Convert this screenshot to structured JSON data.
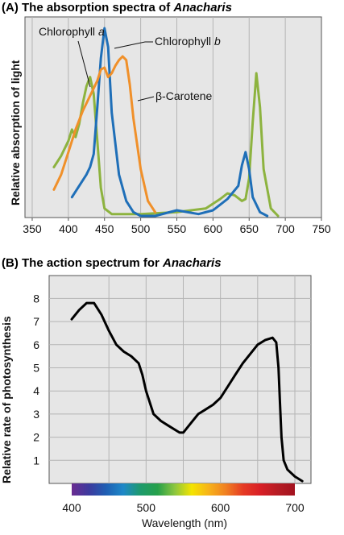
{
  "chart_data": [
    {
      "type": "line",
      "title_prefix": "(A)",
      "title": "The absorption spectra of",
      "title_species": "Anacharis",
      "xlabel": "",
      "ylabel": "Relative absorption of light",
      "xlim": [
        340,
        750
      ],
      "ylim": [
        0,
        1
      ],
      "x_ticks": [
        "350",
        "400",
        "450",
        "500",
        "550",
        "600",
        "650",
        "700",
        "750"
      ],
      "grid": true,
      "series": [
        {
          "name": "Chlorophyll",
          "name_suffix": "a",
          "color": "#8db33f",
          "points": [
            [
              380,
              0.26
            ],
            [
              390,
              0.32
            ],
            [
              400,
              0.4
            ],
            [
              405,
              0.46
            ],
            [
              410,
              0.42
            ],
            [
              415,
              0.49
            ],
            [
              420,
              0.6
            ],
            [
              425,
              0.69
            ],
            [
              430,
              0.74
            ],
            [
              435,
              0.65
            ],
            [
              440,
              0.4
            ],
            [
              445,
              0.15
            ],
            [
              450,
              0.04
            ],
            [
              460,
              0.01
            ],
            [
              500,
              0.01
            ],
            [
              550,
              0.02
            ],
            [
              590,
              0.04
            ],
            [
              610,
              0.09
            ],
            [
              620,
              0.12
            ],
            [
              630,
              0.11
            ],
            [
              640,
              0.08
            ],
            [
              645,
              0.09
            ],
            [
              650,
              0.2
            ],
            [
              655,
              0.5
            ],
            [
              660,
              0.76
            ],
            [
              665,
              0.58
            ],
            [
              670,
              0.25
            ],
            [
              680,
              0.04
            ],
            [
              690,
              0.0
            ]
          ]
        },
        {
          "name": "Chlorophyll",
          "name_suffix": "b",
          "color": "#1f6fb8",
          "points": [
            [
              405,
              0.1
            ],
            [
              415,
              0.16
            ],
            [
              425,
              0.22
            ],
            [
              430,
              0.26
            ],
            [
              435,
              0.33
            ],
            [
              440,
              0.58
            ],
            [
              445,
              0.84
            ],
            [
              450,
              1.0
            ],
            [
              455,
              0.9
            ],
            [
              460,
              0.55
            ],
            [
              470,
              0.22
            ],
            [
              480,
              0.08
            ],
            [
              490,
              0.02
            ],
            [
              500,
              0.0
            ],
            [
              520,
              0.0
            ],
            [
              550,
              0.03
            ],
            [
              580,
              0.01
            ],
            [
              600,
              0.03
            ],
            [
              620,
              0.09
            ],
            [
              635,
              0.16
            ],
            [
              640,
              0.27
            ],
            [
              645,
              0.34
            ],
            [
              650,
              0.25
            ],
            [
              655,
              0.1
            ],
            [
              665,
              0.02
            ],
            [
              675,
              0.0
            ]
          ]
        },
        {
          "name": "β-Carotene",
          "color": "#f0902a",
          "points": [
            [
              380,
              0.14
            ],
            [
              390,
              0.22
            ],
            [
              400,
              0.34
            ],
            [
              410,
              0.46
            ],
            [
              420,
              0.56
            ],
            [
              430,
              0.64
            ],
            [
              435,
              0.68
            ],
            [
              440,
              0.72
            ],
            [
              445,
              0.78
            ],
            [
              450,
              0.79
            ],
            [
              455,
              0.74
            ],
            [
              460,
              0.76
            ],
            [
              465,
              0.8
            ],
            [
              470,
              0.83
            ],
            [
              475,
              0.85
            ],
            [
              480,
              0.83
            ],
            [
              485,
              0.7
            ],
            [
              490,
              0.52
            ],
            [
              500,
              0.25
            ],
            [
              510,
              0.08
            ],
            [
              520,
              0.02
            ]
          ]
        }
      ]
    },
    {
      "type": "line",
      "title_prefix": "(B)",
      "title": "The action spectrum for",
      "title_species": "Anacharis",
      "xlabel": "Wavelength (nm)",
      "ylabel": "Relative rate of photosynthesis",
      "xlim": [
        380,
        720
      ],
      "ylim": [
        0,
        8.6
      ],
      "x_ticks": [
        "400",
        "500",
        "600",
        "700"
      ],
      "y_ticks": [
        "1",
        "2",
        "3",
        "4",
        "5",
        "6",
        "7",
        "8"
      ],
      "grid": true,
      "series": [
        {
          "color": "#000000",
          "points": [
            [
              400,
              7.1
            ],
            [
              410,
              7.5
            ],
            [
              420,
              7.8
            ],
            [
              430,
              7.8
            ],
            [
              440,
              7.3
            ],
            [
              450,
              6.6
            ],
            [
              460,
              6.0
            ],
            [
              470,
              5.7
            ],
            [
              480,
              5.5
            ],
            [
              490,
              5.2
            ],
            [
              495,
              4.7
            ],
            [
              500,
              4.0
            ],
            [
              510,
              3.0
            ],
            [
              520,
              2.7
            ],
            [
              530,
              2.5
            ],
            [
              545,
              2.2
            ],
            [
              550,
              2.2
            ],
            [
              560,
              2.6
            ],
            [
              570,
              3.0
            ],
            [
              580,
              3.2
            ],
            [
              590,
              3.4
            ],
            [
              600,
              3.7
            ],
            [
              610,
              4.2
            ],
            [
              620,
              4.7
            ],
            [
              630,
              5.2
            ],
            [
              640,
              5.6
            ],
            [
              650,
              6.0
            ],
            [
              660,
              6.2
            ],
            [
              670,
              6.3
            ],
            [
              675,
              6.1
            ],
            [
              678,
              5.0
            ],
            [
              680,
              3.5
            ],
            [
              682,
              2.0
            ],
            [
              685,
              1.0
            ],
            [
              690,
              0.6
            ],
            [
              700,
              0.3
            ],
            [
              710,
              0.1
            ]
          ]
        }
      ],
      "spectrum_bar": {
        "range": [
          400,
          700
        ],
        "colors": [
          "#6a2c91",
          "#3d3a9e",
          "#1f5fb3",
          "#1e88c8",
          "#1d9a6c",
          "#26a04a",
          "#8cc63f",
          "#f4e400",
          "#f7b21a",
          "#f07f22",
          "#e53a24",
          "#d81f26",
          "#b61c24",
          "#a3121f"
        ]
      }
    }
  ]
}
